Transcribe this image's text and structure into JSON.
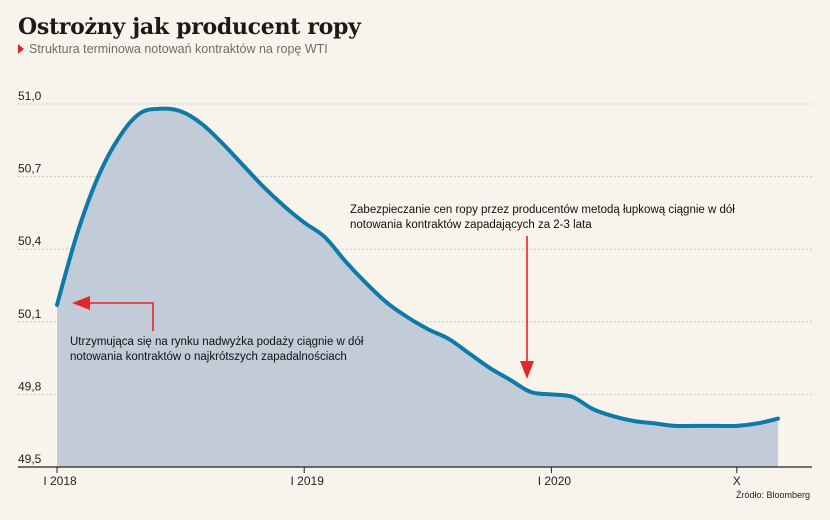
{
  "header": {
    "title": "Ostrożny jak producent ropy",
    "subtitle": "Struktura terminowa notowań kontraktów na ropę WTI"
  },
  "source": "Źródło: Bloomberg",
  "colors": {
    "line": "#0e7aa8",
    "area": "#c2ccd8",
    "grid": "#b8b8b8",
    "arrow": "#e3262b",
    "marker": "#e3262b"
  },
  "chart_data": {
    "type": "area",
    "title": "Ostrożny jak producent ropy",
    "subtitle": "Struktura terminowa notowań kontraktów na ropę WTI",
    "xlabel": "",
    "ylabel": "",
    "ylim": [
      49.5,
      51.0
    ],
    "yticks": [
      "51,0",
      "50,7",
      "50,4",
      "50,1",
      "49,8",
      "49,5"
    ],
    "ytick_values": [
      51.0,
      50.7,
      50.4,
      50.1,
      49.8,
      49.5
    ],
    "xticks": [
      "I 2018",
      "I 2019",
      "I 2020",
      "X"
    ],
    "xtick_months": [
      0,
      12,
      24,
      33
    ],
    "grid": true,
    "series": [
      {
        "month_offsets": [
          0,
          1,
          2,
          3,
          4,
          5,
          6,
          7,
          8,
          9,
          10,
          11,
          12,
          13,
          14,
          15,
          16,
          17,
          18,
          19,
          20,
          21,
          22,
          23,
          24,
          25,
          26,
          27,
          28,
          29,
          30,
          31,
          32,
          33,
          34,
          35
        ],
        "values": [
          50.17,
          50.47,
          50.7,
          50.86,
          50.96,
          50.98,
          50.97,
          50.92,
          50.84,
          50.75,
          50.66,
          50.58,
          50.51,
          50.45,
          50.35,
          50.26,
          50.18,
          50.12,
          50.07,
          50.03,
          49.97,
          49.91,
          49.86,
          49.81,
          49.8,
          49.79,
          49.74,
          49.71,
          49.69,
          49.68,
          49.67,
          49.67,
          49.67,
          49.67,
          49.68,
          49.7
        ]
      }
    ],
    "annotations": [
      {
        "lines": [
          "Zabezpieczanie cen ropy przez producentów metodą łupkową ciągnie w dół",
          "notowania kontraktów zapadających za 2-3 lata"
        ],
        "arrow": "down"
      },
      {
        "lines": [
          "Utrzymująca się na rynku nadwyżka podaży ciągnie w dół",
          "notowania kontraktów o najkrótszych zapadalnościach"
        ],
        "arrow": "left"
      }
    ]
  }
}
